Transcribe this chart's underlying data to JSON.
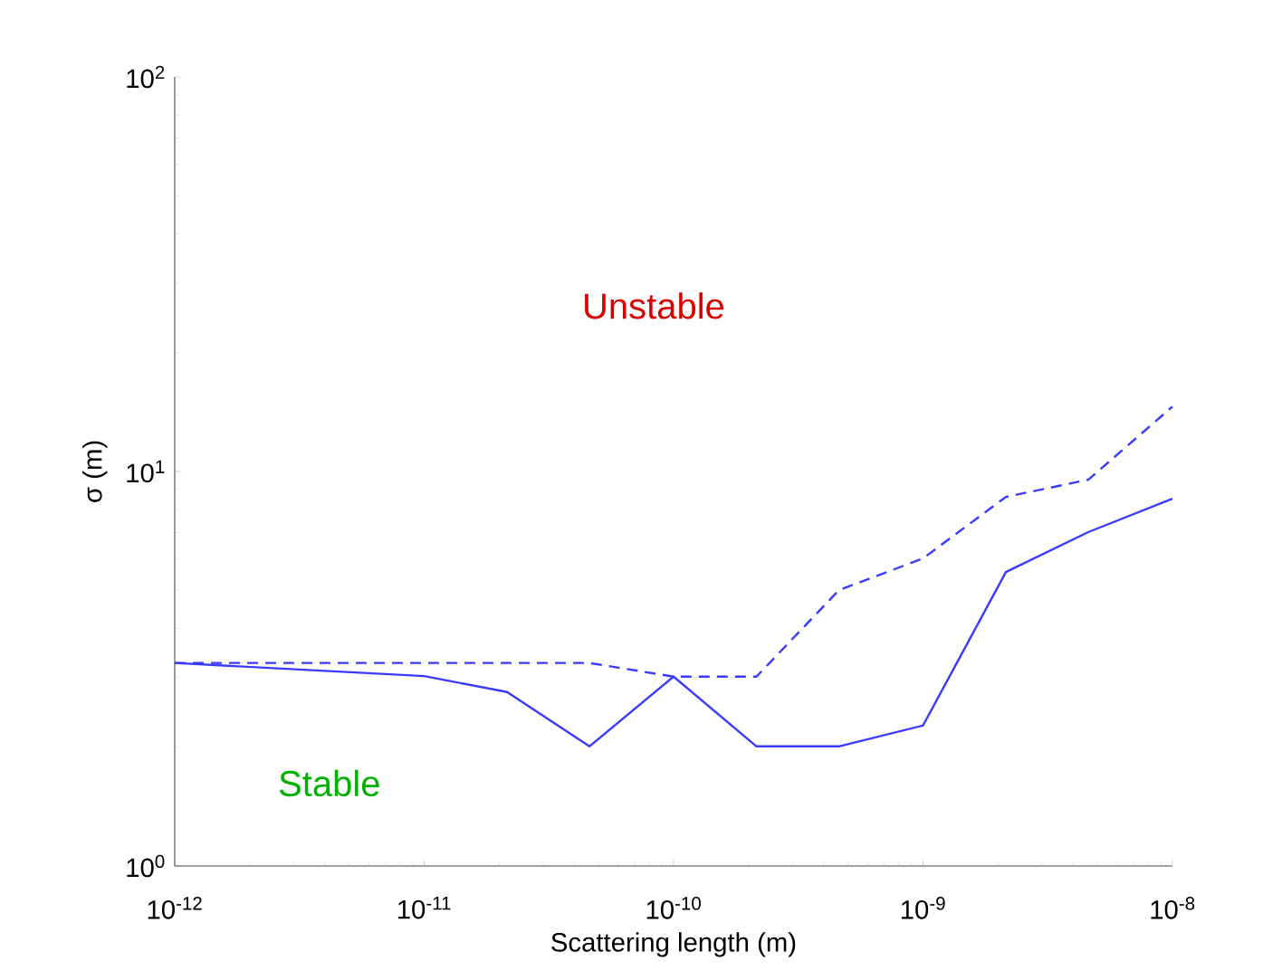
{
  "chart_data": {
    "type": "line",
    "xlabel": "Scattering length (m)",
    "ylabel": "σ (m)",
    "x": [
      1e-12,
      1e-11,
      2.15e-11,
      4.6e-11,
      1e-10,
      2.15e-10,
      4.6e-10,
      1e-09,
      2.15e-09,
      4.6e-09,
      1e-08
    ],
    "series": [
      {
        "color": "#3a3aff",
        "line_style": "solid",
        "values": [
          3.27,
          3.03,
          2.76,
          2.01,
          3.02,
          2.01,
          2.01,
          2.27,
          5.56,
          7.02,
          8.53
        ]
      },
      {
        "color": "#3a3aff",
        "line_style": "dashed",
        "values": [
          3.27,
          3.27,
          3.27,
          3.27,
          3.02,
          3.02,
          5.0,
          6.02,
          8.62,
          9.53,
          14.6
        ]
      }
    ],
    "log": "xy",
    "xlim": [
      1e-12,
      1e-08
    ],
    "ylim": [
      1,
      100
    ],
    "xticks": [
      {
        "value": 1e-12,
        "label": "10$^{-12}$"
      },
      {
        "value": 1e-11,
        "label": "10$^{-11}$"
      },
      {
        "value": 1e-10,
        "label": "10$^{-10}$"
      },
      {
        "value": 1e-09,
        "label": "10$^{-9}$"
      },
      {
        "value": 1e-08,
        "label": "10$^{-8}$"
      }
    ],
    "yticks": [
      {
        "value": 1,
        "label": "10$^{0}$"
      },
      {
        "value": 10,
        "label": "10$^{1}$"
      },
      {
        "value": 100,
        "label": "10$^{2}$"
      }
    ],
    "grid": false,
    "annotations": [
      "Unstable",
      "Stable"
    ]
  }
}
